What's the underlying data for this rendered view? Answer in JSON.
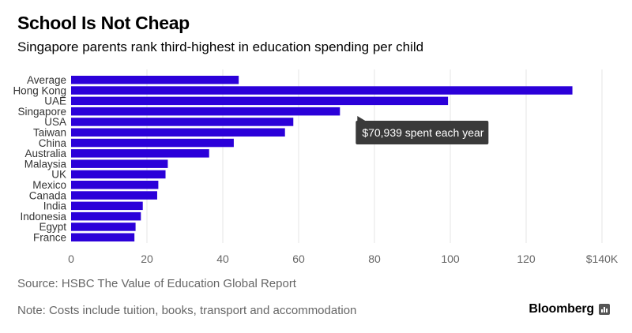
{
  "header": {
    "title": "School Is Not Cheap",
    "subtitle": "Singapore parents rank third-highest in education spending per child"
  },
  "footer": {
    "source": "Source: HSBC The Value of Education Global Report",
    "note": "Note: Costs include tuition, books, transport and accommodation",
    "brand": "Bloomberg"
  },
  "colors": {
    "bar": "#2b00d9",
    "grid": "#e6e6e6",
    "tooltip_bg": "#3a3a3a"
  },
  "chart_data": {
    "type": "bar",
    "orientation": "horizontal",
    "categories": [
      "Average",
      "Hong Kong",
      "UAE",
      "Singapore",
      "USA",
      "Taiwan",
      "China",
      "Australia",
      "Malaysia",
      "UK",
      "Mexico",
      "Canada",
      "India",
      "Indonesia",
      "Egypt",
      "France"
    ],
    "values": [
      44.2,
      132.2,
      99.4,
      70.9,
      58.6,
      56.4,
      42.9,
      36.4,
      25.5,
      24.9,
      23.0,
      22.7,
      18.9,
      18.4,
      17.0,
      16.7
    ],
    "x_ticks": [
      0,
      20,
      40,
      60,
      80,
      100,
      120,
      140
    ],
    "x_tick_labels": [
      "0",
      "20",
      "40",
      "60",
      "80",
      "100",
      "120",
      "$140K"
    ],
    "xlim": [
      0,
      140
    ],
    "grid": true,
    "annotation": {
      "category": "Singapore",
      "text": "$70,939 spent each year"
    }
  }
}
